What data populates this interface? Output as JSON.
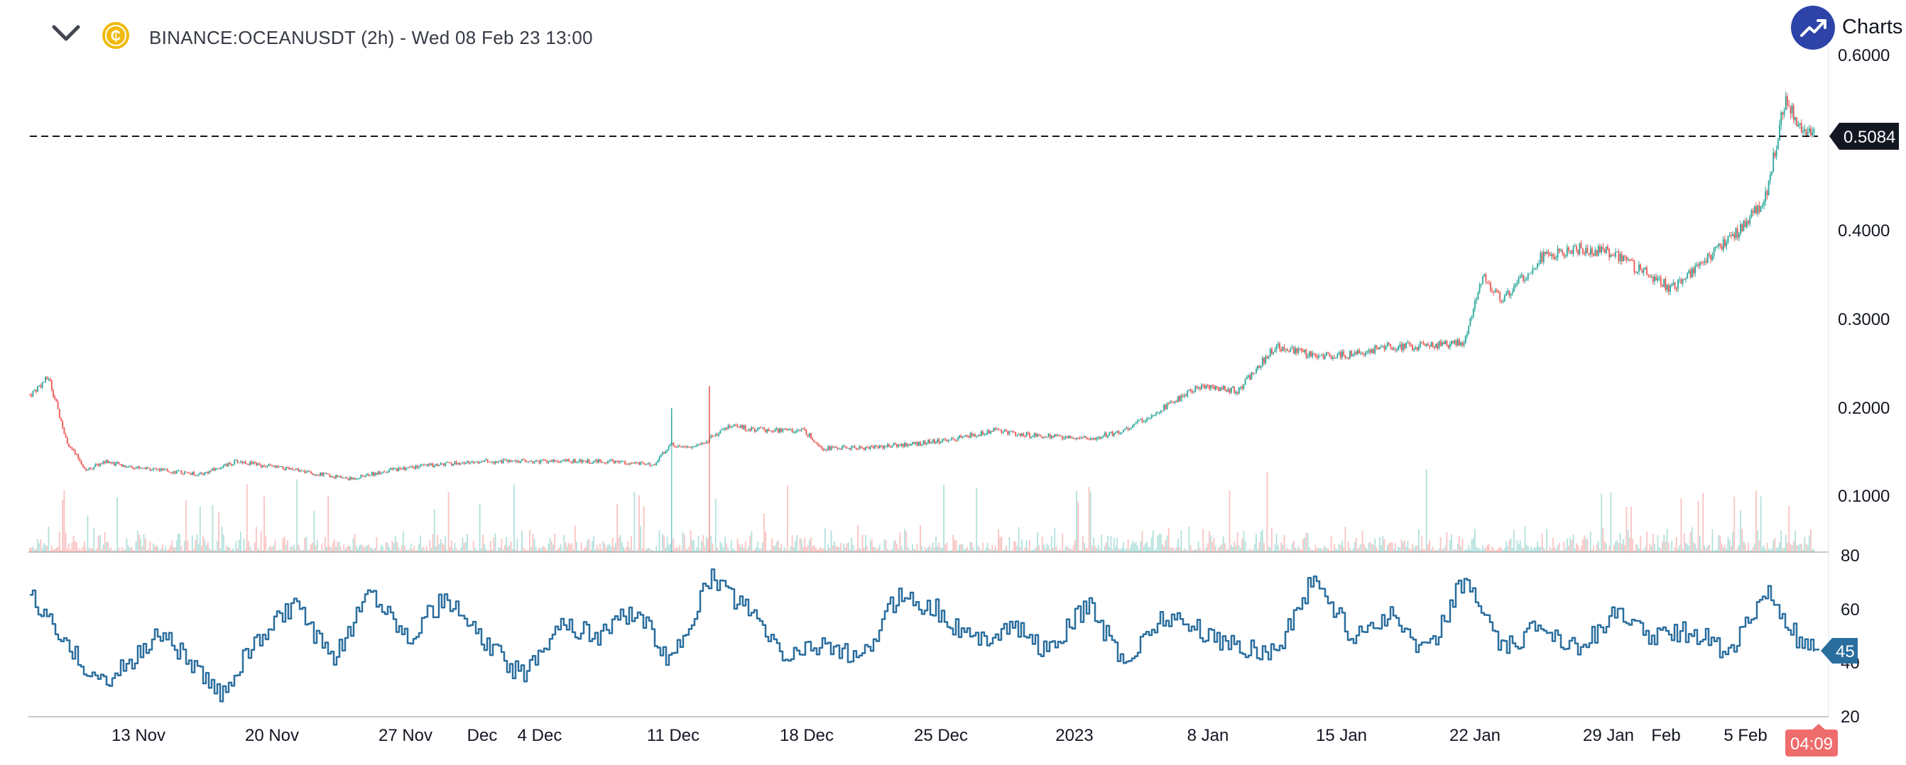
{
  "header": {
    "symbol_title": "BINANCE:OCEANUSDT (2h) - Wed 08 Feb 23 13:00",
    "brand_text": "Charts p"
  },
  "colors": {
    "up": "#26a69a",
    "down": "#ef5350",
    "rsi": "#2a6e9e",
    "brand": "#2d43a8",
    "coin": "#f0b90b",
    "timer_bg": "#ef6c6c"
  },
  "icons": [
    "chevron-down-icon",
    "coin-icon",
    "trending-up-icon"
  ],
  "price_panel": {
    "current_price_label": "0.5084",
    "current_price": 0.5084,
    "y_ticks": [
      "0.6000",
      "0.4000",
      "0.3000",
      "0.2000",
      "0.1000"
    ]
  },
  "rsi_panel": {
    "current_value_label": "45",
    "y_ticks": [
      "80",
      "60",
      "40",
      "20"
    ]
  },
  "x_axis": {
    "ticks": [
      "13 Nov",
      "20 Nov",
      "27 Nov",
      "Dec",
      "4 Dec",
      "11 Dec",
      "18 Dec",
      "25 Dec",
      "2023",
      "8 Jan",
      "15 Jan",
      "22 Jan",
      "29 Jan",
      "Feb",
      "5 Feb"
    ],
    "countdown": "04:09"
  },
  "chart_data": {
    "type": "candlestick",
    "symbol": "BINANCE:OCEANUSDT",
    "interval": "2h",
    "price_axis": {
      "ylim": [
        0.08,
        0.62
      ],
      "ticks": [
        0.1,
        0.2,
        0.3,
        0.4,
        0.6
      ]
    },
    "rsi_axis": {
      "ylim": [
        20,
        80
      ],
      "ticks": [
        20,
        40,
        60,
        80
      ]
    },
    "close_series": {
      "dates": [
        "2022-11-06",
        "2022-11-07",
        "2022-11-08",
        "2022-11-09",
        "2022-11-10",
        "2022-11-11",
        "2022-11-13",
        "2022-11-15",
        "2022-11-17",
        "2022-11-20",
        "2022-11-23",
        "2022-11-25",
        "2022-11-27",
        "2022-11-30",
        "2022-12-02",
        "2022-12-04",
        "2022-12-07",
        "2022-12-09",
        "2022-12-10",
        "2022-12-11",
        "2022-12-12",
        "2022-12-13",
        "2022-12-15",
        "2022-12-17",
        "2022-12-18",
        "2022-12-20",
        "2022-12-23",
        "2022-12-25",
        "2022-12-27",
        "2022-12-29",
        "2023-01-01",
        "2023-01-03",
        "2023-01-05",
        "2023-01-07",
        "2023-01-09",
        "2023-01-11",
        "2023-01-13",
        "2023-01-15",
        "2023-01-17",
        "2023-01-19",
        "2023-01-21",
        "2023-01-22",
        "2023-01-23",
        "2023-01-25",
        "2023-01-27",
        "2023-01-29",
        "2023-01-30",
        "2023-02-01",
        "2023-02-03",
        "2023-02-05",
        "2023-02-06",
        "2023-02-07",
        "2023-02-08"
      ],
      "close": [
        0.215,
        0.235,
        0.16,
        0.13,
        0.14,
        0.135,
        0.13,
        0.125,
        0.14,
        0.13,
        0.12,
        0.13,
        0.135,
        0.14,
        0.14,
        0.14,
        0.14,
        0.135,
        0.16,
        0.155,
        0.165,
        0.18,
        0.175,
        0.175,
        0.155,
        0.155,
        0.16,
        0.165,
        0.175,
        0.17,
        0.165,
        0.175,
        0.2,
        0.225,
        0.22,
        0.27,
        0.26,
        0.26,
        0.27,
        0.27,
        0.275,
        0.35,
        0.32,
        0.37,
        0.38,
        0.375,
        0.36,
        0.335,
        0.37,
        0.41,
        0.44,
        0.55,
        0.5084
      ]
    },
    "rsi_series": {
      "dates": [
        "2022-11-06",
        "2022-11-08",
        "2022-11-10",
        "2022-11-13",
        "2022-11-16",
        "2022-11-18",
        "2022-11-20",
        "2022-11-22",
        "2022-11-24",
        "2022-11-26",
        "2022-11-28",
        "2022-11-30",
        "2022-12-02",
        "2022-12-04",
        "2022-12-06",
        "2022-12-08",
        "2022-12-10",
        "2022-12-12",
        "2022-12-14",
        "2022-12-16",
        "2022-12-18",
        "2022-12-20",
        "2022-12-22",
        "2022-12-24",
        "2022-12-26",
        "2022-12-28",
        "2022-12-30",
        "2023-01-01",
        "2023-01-03",
        "2023-01-05",
        "2023-01-07",
        "2023-01-09",
        "2023-01-11",
        "2023-01-13",
        "2023-01-15",
        "2023-01-17",
        "2023-01-19",
        "2023-01-21",
        "2023-01-23",
        "2023-01-25",
        "2023-01-27",
        "2023-01-29",
        "2023-01-31",
        "2023-02-02",
        "2023-02-04",
        "2023-02-06",
        "2023-02-08"
      ],
      "values": [
        66,
        45,
        32,
        52,
        28,
        48,
        62,
        40,
        68,
        50,
        64,
        48,
        35,
        55,
        50,
        60,
        40,
        72,
        60,
        42,
        48,
        40,
        66,
        60,
        48,
        54,
        44,
        62,
        40,
        58,
        52,
        46,
        44,
        72,
        50,
        58,
        44,
        72,
        44,
        54,
        46,
        58,
        50,
        52,
        44,
        66,
        45
      ]
    }
  }
}
